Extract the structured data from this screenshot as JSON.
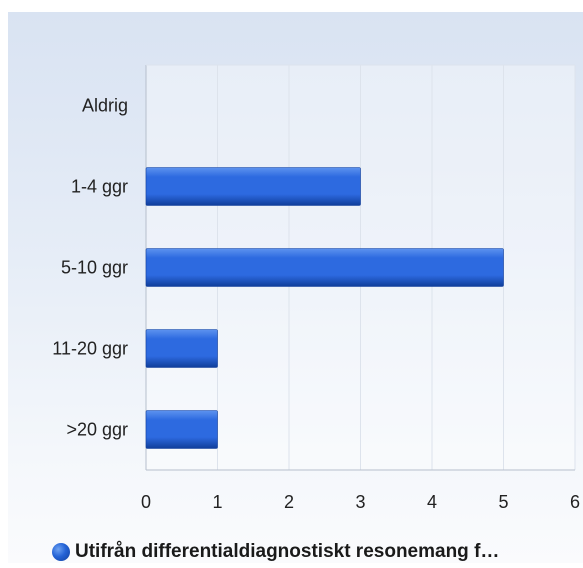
{
  "chart_data": {
    "type": "bar",
    "orientation": "horizontal",
    "categories": [
      "Aldrig",
      "1-4 ggr",
      "5-10 ggr",
      "11-20 ggr",
      ">20 ggr"
    ],
    "series": [
      {
        "name": "Utifrån differentialdiagnostiskt resonemang f…",
        "values": [
          0,
          3,
          5,
          1,
          1
        ]
      }
    ],
    "xlim": [
      0,
      6
    ],
    "x_ticks": [
      "0",
      "1",
      "2",
      "3",
      "4",
      "5",
      "6"
    ],
    "grid": true,
    "legend_position": "bottom",
    "colors": {
      "bar_dark": "#0f3d9a",
      "bar_mid": "#2d6ae0",
      "bar_light": "#5d93ef",
      "grid": "#dde3ec",
      "axis": "#b6bfcc"
    }
  }
}
